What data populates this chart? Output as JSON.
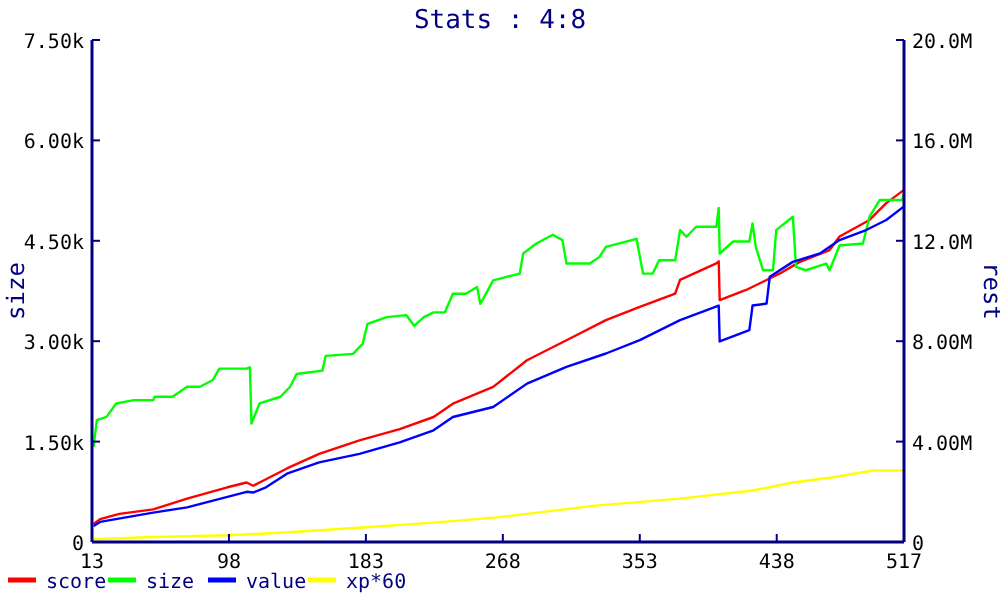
{
  "chart_data": {
    "type": "line",
    "title": "Stats : 4:8",
    "ylabel": "size",
    "y2label": "rest",
    "xlim": [
      13,
      517
    ],
    "xticks": [
      13,
      98,
      183,
      268,
      353,
      438,
      517
    ],
    "ylim": [
      0,
      7.5
    ],
    "yticks": [
      {
        "value": 0,
        "label": "0"
      },
      {
        "value": 1.5,
        "label": "1.50k"
      },
      {
        "value": 3,
        "label": "3.00k"
      },
      {
        "value": 4.5,
        "label": "4.50k"
      },
      {
        "value": 6,
        "label": "6.00k"
      },
      {
        "value": 7.5,
        "label": "7.50k"
      }
    ],
    "y2lim": [
      0,
      20
    ],
    "y2ticks": [
      {
        "value": 0,
        "label": "0"
      },
      {
        "value": 4,
        "label": "4.00M"
      },
      {
        "value": 8,
        "label": "8.00M"
      },
      {
        "value": 12,
        "label": "12.0M"
      },
      {
        "value": 16,
        "label": "16.0M"
      },
      {
        "value": 20,
        "label": "20.0M"
      }
    ],
    "legend": "bottom left",
    "grid": false,
    "series": [
      {
        "name": "score",
        "color": "#ff0000",
        "axis": "y2",
        "x": [
          14,
          18,
          30,
          51,
          72,
          97,
          109,
          113,
          121,
          134,
          154,
          179,
          204,
          225,
          237,
          262,
          283,
          307.5,
          332,
          353,
          375,
          378,
          400.5,
          402,
          402.6,
          419,
          440,
          452,
          470.8,
          477,
          495.6,
          506,
          517
        ],
        "values": [
          0.72,
          0.91,
          1.12,
          1.3,
          1.73,
          2.18,
          2.37,
          2.24,
          2.5,
          2.93,
          3.51,
          4.05,
          4.5,
          4.98,
          5.51,
          6.18,
          7.24,
          8.04,
          8.84,
          9.37,
          9.9,
          10.44,
          11.1,
          11.18,
          9.64,
          10.04,
          10.7,
          11.15,
          11.63,
          12.17,
          12.83,
          13.5,
          14.03
        ]
      },
      {
        "name": "size",
        "color": "#00ff00",
        "axis": "y",
        "x": [
          14,
          16,
          22,
          28,
          39,
          51,
          52,
          63,
          72,
          80,
          88,
          92,
          109,
          111,
          112,
          117,
          130,
          136,
          140,
          156,
          158,
          175,
          181,
          184,
          196,
          208,
          213,
          219,
          225,
          232,
          237,
          245,
          252,
          254,
          258,
          262,
          278.5,
          280.6,
          288.8,
          299,
          305,
          307.5,
          322,
          328,
          332,
          351,
          355,
          361,
          365,
          375,
          378,
          382,
          388,
          400.5,
          402,
          402.6,
          411,
          421,
          423,
          425,
          429.5,
          435.7,
          437.7,
          448,
          450,
          456,
          468.7,
          470.8,
          475,
          477,
          491.5,
          495.6,
          502,
          516,
          517
        ],
        "values": [
          1.42,
          1.82,
          1.87,
          2.07,
          2.12,
          2.12,
          2.17,
          2.17,
          2.32,
          2.32,
          2.42,
          2.59,
          2.59,
          2.61,
          1.77,
          2.07,
          2.17,
          2.32,
          2.51,
          2.56,
          2.78,
          2.81,
          2.96,
          3.26,
          3.36,
          3.39,
          3.23,
          3.36,
          3.43,
          3.43,
          3.71,
          3.71,
          3.81,
          3.56,
          3.73,
          3.91,
          4.01,
          4.31,
          4.46,
          4.59,
          4.51,
          4.16,
          4.16,
          4.26,
          4.41,
          4.53,
          4.01,
          4.01,
          4.21,
          4.21,
          4.66,
          4.56,
          4.71,
          4.71,
          4.99,
          4.31,
          4.49,
          4.49,
          4.76,
          4.41,
          4.06,
          4.06,
          4.66,
          4.86,
          4.11,
          4.06,
          4.16,
          4.06,
          4.31,
          4.43,
          4.46,
          4.86,
          5.11,
          5.11,
          5.21
        ]
      },
      {
        "name": "value",
        "color": "#0000ff",
        "axis": "y2",
        "x": [
          14,
          18,
          51,
          72,
          109,
          113,
          121,
          134,
          154,
          179,
          204,
          225,
          237,
          262,
          283,
          307.5,
          332,
          353,
          378,
          402,
          402.6,
          421,
          423,
          431.7,
          433.7,
          448,
          465,
          477,
          493.5,
          506,
          517
        ],
        "values": [
          0.64,
          0.8,
          1.17,
          1.38,
          2.0,
          1.97,
          2.18,
          2.72,
          3.17,
          3.51,
          3.97,
          4.45,
          4.98,
          5.38,
          6.31,
          6.98,
          7.51,
          8.04,
          8.84,
          9.42,
          7.99,
          8.44,
          9.42,
          9.5,
          10.57,
          11.16,
          11.5,
          12.03,
          12.43,
          12.83,
          13.37
        ]
      },
      {
        "name": "xp*60",
        "color": "#ffff00",
        "axis": "y2",
        "x": [
          14,
          47,
          97,
          130,
          183,
          225,
          266,
          283,
          324,
          378,
          423,
          448,
          473,
          498,
          517
        ],
        "values": [
          0.11,
          0.19,
          0.27,
          0.37,
          0.59,
          0.77,
          0.99,
          1.12,
          1.44,
          1.73,
          2.05,
          2.37,
          2.58,
          2.85,
          2.85
        ]
      }
    ]
  }
}
